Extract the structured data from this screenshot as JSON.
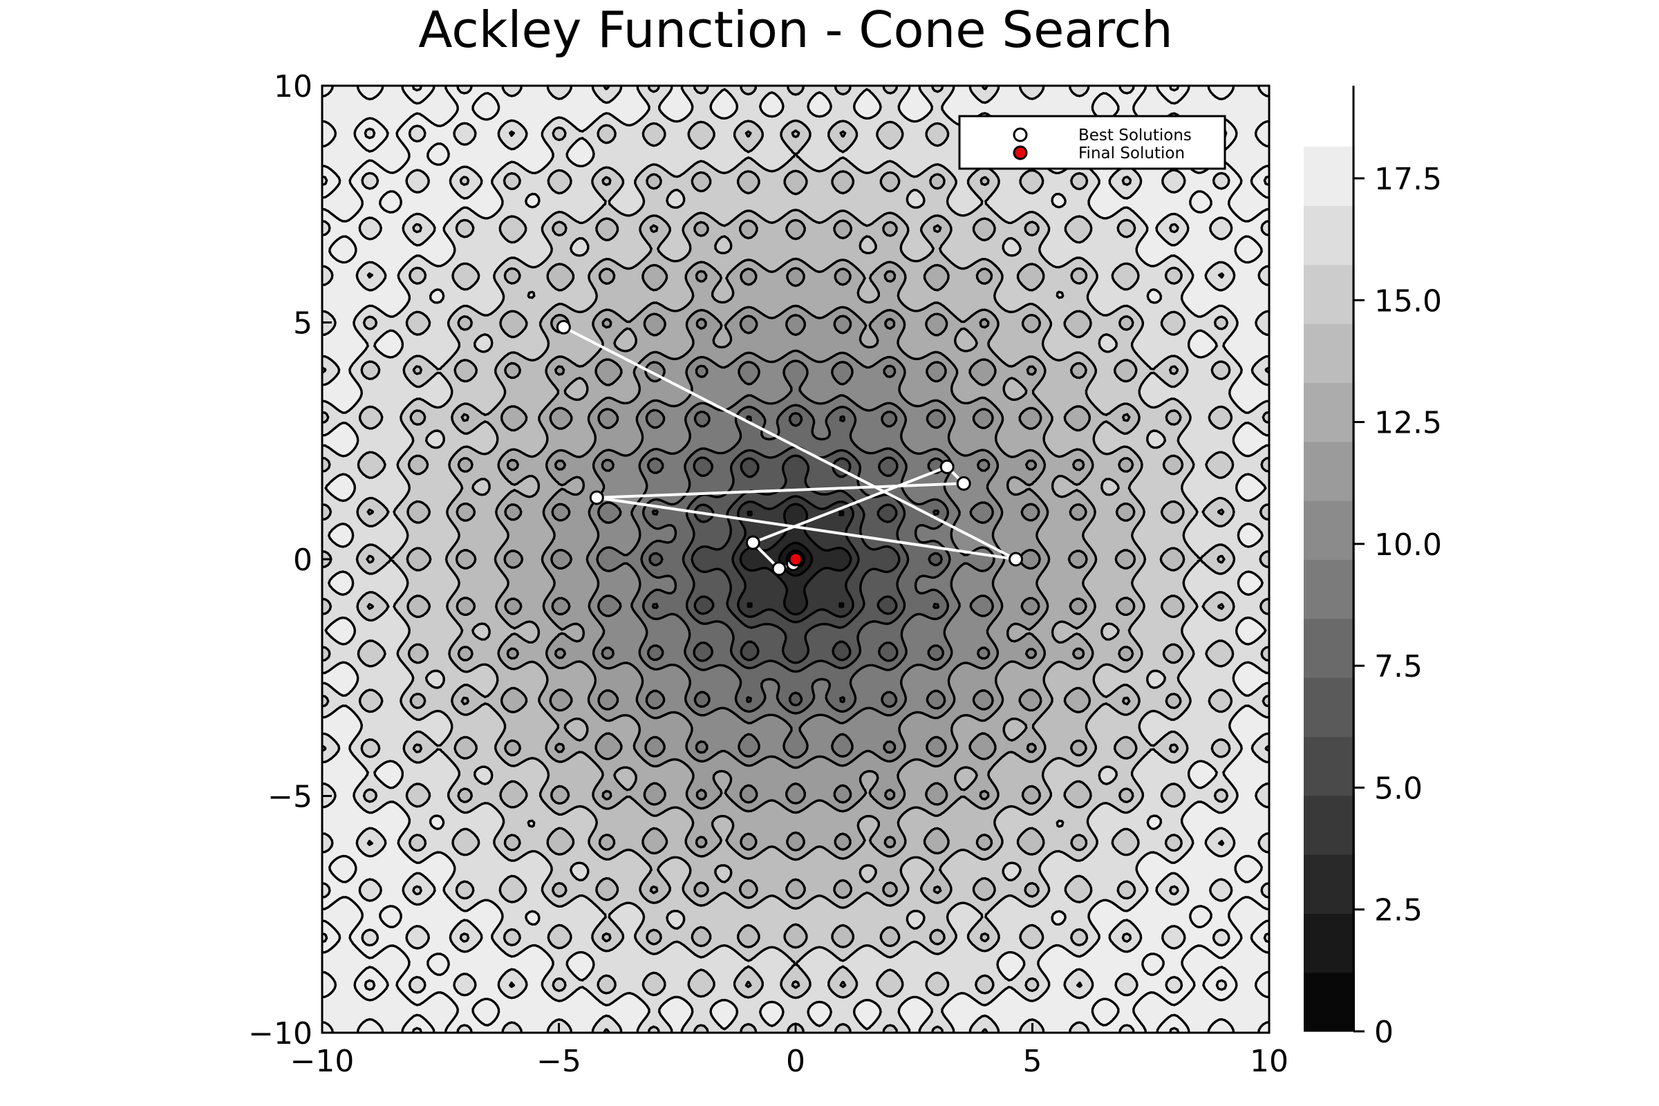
{
  "chart_data": {
    "type": "heatmap",
    "title": "Ackley Function - Cone Search",
    "xlabel": "",
    "ylabel": "",
    "xlim": [
      -10,
      10
    ],
    "ylim": [
      -10,
      10
    ],
    "x_ticks": [
      -10,
      -5,
      0,
      5,
      10
    ],
    "y_ticks": [
      -10,
      -5,
      0,
      5,
      10
    ],
    "x_tick_labels": [
      "−10",
      "−5",
      "0",
      "5",
      "10"
    ],
    "y_tick_labels": [
      "−10",
      "−5",
      "0",
      "5",
      "10"
    ],
    "grid": false,
    "surface": {
      "function": "ackley",
      "colormap": "grayscale",
      "contour_lines": true,
      "contour_line_color": "#000000",
      "levels": 15
    },
    "colorbar": {
      "range": [
        0,
        19.4
      ],
      "ticks": [
        0,
        2.5,
        5.0,
        7.5,
        10.0,
        12.5,
        15.0,
        17.5
      ],
      "tick_labels": [
        "0",
        "2.5",
        "5.0",
        "7.5",
        "10.0",
        "12.5",
        "15.0",
        "17.5"
      ],
      "band_min": 0,
      "band_max": 18.2,
      "band_step": 1.21
    },
    "legend": {
      "placement": "top-right",
      "entries": [
        {
          "label": "Best Solutions",
          "marker_color": "#ffffff"
        },
        {
          "label": "Final Solution",
          "marker_color": "#e8000b"
        }
      ]
    },
    "series": [
      {
        "name": "Best Solutions",
        "type": "line-scatter",
        "color": "#ffffff",
        "points": [
          {
            "x": -4.9,
            "y": 4.9
          },
          {
            "x": 4.65,
            "y": 0.0
          },
          {
            "x": -4.2,
            "y": 1.3
          },
          {
            "x": 3.55,
            "y": 1.6
          },
          {
            "x": 3.2,
            "y": 1.95
          },
          {
            "x": -0.9,
            "y": 0.35
          },
          {
            "x": -0.35,
            "y": -0.2
          },
          {
            "x": -0.05,
            "y": -0.1
          },
          {
            "x": 0.02,
            "y": 0.02
          }
        ]
      },
      {
        "name": "Final Solution",
        "type": "scatter",
        "color": "#e8000b",
        "points": [
          {
            "x": 0.0,
            "y": 0.0
          }
        ]
      }
    ]
  }
}
